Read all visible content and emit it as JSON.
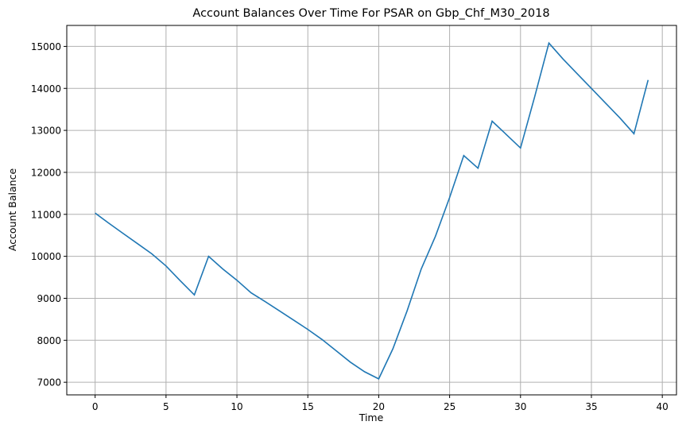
{
  "chart_data": {
    "type": "line",
    "title": "Account Balances Over Time For PSAR on Gbp_Chf_M30_2018",
    "xlabel": "Time",
    "ylabel": "Account Balance",
    "xlim": [
      -2,
      41
    ],
    "ylim": [
      6700,
      15500
    ],
    "xticks": [
      0,
      5,
      10,
      15,
      20,
      25,
      30,
      35,
      40
    ],
    "yticks": [
      7000,
      8000,
      9000,
      10000,
      11000,
      12000,
      13000,
      14000,
      15000
    ],
    "grid": true,
    "line_color": "#1f77b4",
    "series": [
      {
        "name": "Account Balance",
        "x": [
          0,
          1,
          2,
          3,
          4,
          5,
          6,
          7,
          8,
          9,
          10,
          11,
          12,
          13,
          14,
          15,
          16,
          17,
          18,
          19,
          20,
          21,
          22,
          23,
          24,
          25,
          26,
          27,
          28,
          29,
          30,
          31,
          32,
          33,
          34,
          35,
          36,
          37,
          38,
          39
        ],
        "values": [
          11030,
          10780,
          10540,
          10300,
          10060,
          9770,
          9420,
          9080,
          10000,
          9700,
          9430,
          9130,
          8920,
          8700,
          8480,
          8260,
          8020,
          7750,
          7480,
          7250,
          7080,
          7800,
          8700,
          9700,
          10480,
          11400,
          12400,
          12100,
          13220,
          12900,
          12580,
          13800,
          15080,
          14700,
          14350,
          14000,
          13650,
          13300,
          12920,
          14200
        ]
      }
    ]
  }
}
